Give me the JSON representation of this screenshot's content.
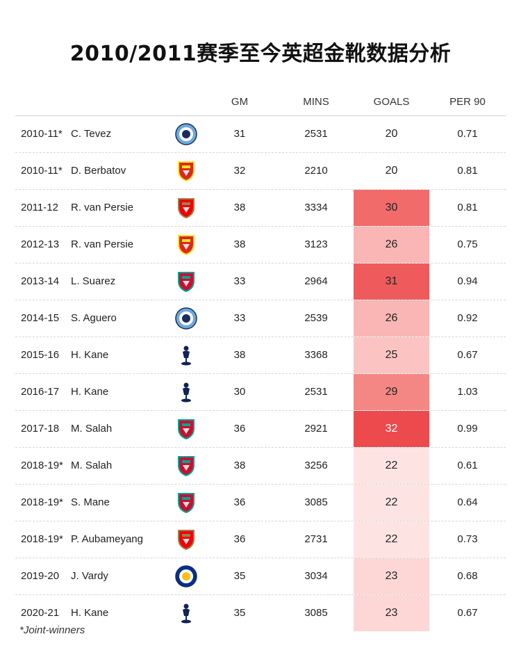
{
  "title": "2010/2011赛季至今英超金靴数据分析",
  "headers": {
    "gm": "GM",
    "mins": "MINS",
    "goals": "GOALS",
    "per90": "PER 90"
  },
  "clubs": {
    "man-city": {
      "icon": "man-city-crest-icon",
      "color": "#6cabdd",
      "accent": "#1c2c5b"
    },
    "man-utd": {
      "icon": "man-utd-crest-icon",
      "color": "#da291c",
      "accent": "#fbe122"
    },
    "arsenal": {
      "icon": "arsenal-crest-icon",
      "color": "#ef0107",
      "accent": "#9c824a"
    },
    "liverpool": {
      "icon": "liverpool-crest-icon",
      "color": "#c8102e",
      "accent": "#00a398"
    },
    "tottenham": {
      "icon": "tottenham-crest-icon",
      "color": "#132257",
      "accent": "#ffffff"
    },
    "leicester": {
      "icon": "leicester-crest-icon",
      "color": "#003090",
      "accent": "#fdbe11"
    }
  },
  "rows": [
    {
      "season": "2010-11*",
      "player": "C. Tevez",
      "club": "man-city",
      "gm": "31",
      "mins": "2531",
      "goals": "20",
      "per90": "0.71",
      "goal_fill": "#ffffff",
      "goal_text": "#222222"
    },
    {
      "season": "2010-11*",
      "player": "D. Berbatov",
      "club": "man-utd",
      "gm": "32",
      "mins": "2210",
      "goals": "20",
      "per90": "0.81",
      "goal_fill": "#ffffff",
      "goal_text": "#222222"
    },
    {
      "season": "2011-12",
      "player": "R. van Persie",
      "club": "arsenal",
      "gm": "38",
      "mins": "3334",
      "goals": "30",
      "per90": "0.81",
      "goal_fill": "#f26b6b",
      "goal_text": "#222222"
    },
    {
      "season": "2012-13",
      "player": "R. van Persie",
      "club": "man-utd",
      "gm": "38",
      "mins": "3123",
      "goals": "26",
      "per90": "0.75",
      "goal_fill": "#f9b6b4",
      "goal_text": "#222222"
    },
    {
      "season": "2013-14",
      "player": "L. Suarez",
      "club": "liverpool",
      "gm": "33",
      "mins": "2964",
      "goals": "31",
      "per90": "0.94",
      "goal_fill": "#ef5b5c",
      "goal_text": "#222222"
    },
    {
      "season": "2014-15",
      "player": "S. Aguero",
      "club": "man-city",
      "gm": "33",
      "mins": "2539",
      "goals": "26",
      "per90": "0.92",
      "goal_fill": "#f9b6b4",
      "goal_text": "#222222"
    },
    {
      "season": "2015-16",
      "player": "H. Kane",
      "club": "tottenham",
      "gm": "38",
      "mins": "3368",
      "goals": "25",
      "per90": "0.67",
      "goal_fill": "#fbc4c2",
      "goal_text": "#222222"
    },
    {
      "season": "2016-17",
      "player": "H. Kane",
      "club": "tottenham",
      "gm": "30",
      "mins": "2531",
      "goals": "29",
      "per90": "1.03",
      "goal_fill": "#f48784",
      "goal_text": "#222222"
    },
    {
      "season": "2017-18",
      "player": "M. Salah",
      "club": "liverpool",
      "gm": "36",
      "mins": "2921",
      "goals": "32",
      "per90": "0.99",
      "goal_fill": "#ec4a4d",
      "goal_text": "#ffffff"
    },
    {
      "season": "2018-19*",
      "player": "M. Salah",
      "club": "liverpool",
      "gm": "38",
      "mins": "3256",
      "goals": "22",
      "per90": "0.61",
      "goal_fill": "#fde4e3",
      "goal_text": "#222222"
    },
    {
      "season": "2018-19*",
      "player": "S. Mane",
      "club": "liverpool",
      "gm": "36",
      "mins": "3085",
      "goals": "22",
      "per90": "0.64",
      "goal_fill": "#fde4e3",
      "goal_text": "#222222"
    },
    {
      "season": "2018-19*",
      "player": "P. Aubameyang",
      "club": "arsenal",
      "gm": "36",
      "mins": "2731",
      "goals": "22",
      "per90": "0.73",
      "goal_fill": "#fde4e3",
      "goal_text": "#222222"
    },
    {
      "season": "2019-20",
      "player": "J. Vardy",
      "club": "leicester",
      "gm": "35",
      "mins": "3034",
      "goals": "23",
      "per90": "0.68",
      "goal_fill": "#fcd7d6",
      "goal_text": "#222222"
    },
    {
      "season": "2020-21",
      "player": "H. Kane",
      "club": "tottenham",
      "gm": "35",
      "mins": "3085",
      "goals": "23",
      "per90": "0.67",
      "goal_fill": "#fcd7d6",
      "goal_text": "#222222"
    }
  ],
  "footnote": "*Joint-winners"
}
